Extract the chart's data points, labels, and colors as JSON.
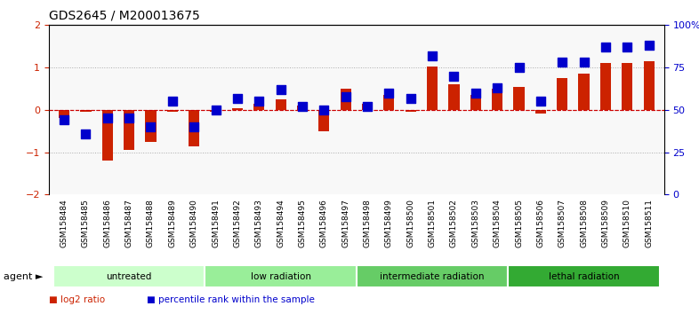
{
  "title": "GDS2645 / M200013675",
  "samples": [
    "GSM158484",
    "GSM158485",
    "GSM158486",
    "GSM158487",
    "GSM158488",
    "GSM158489",
    "GSM158490",
    "GSM158491",
    "GSM158492",
    "GSM158493",
    "GSM158494",
    "GSM158495",
    "GSM158496",
    "GSM158497",
    "GSM158498",
    "GSM158499",
    "GSM158500",
    "GSM158501",
    "GSM158502",
    "GSM158503",
    "GSM158504",
    "GSM158505",
    "GSM158506",
    "GSM158507",
    "GSM158508",
    "GSM158509",
    "GSM158510",
    "GSM158511"
  ],
  "log2_ratio": [
    -0.18,
    -0.05,
    -1.2,
    -0.95,
    -0.75,
    -0.05,
    -0.85,
    -0.05,
    0.05,
    0.15,
    0.25,
    0.1,
    -0.5,
    0.5,
    0.15,
    0.35,
    -0.05,
    1.02,
    0.6,
    0.35,
    0.5,
    0.55,
    -0.08,
    0.75,
    0.85,
    1.1,
    1.1,
    1.15
  ],
  "pct_rank": [
    44,
    36,
    45,
    45,
    40,
    55,
    40,
    50,
    57,
    55,
    62,
    52,
    50,
    58,
    52,
    60,
    57,
    82,
    70,
    60,
    63,
    75,
    55,
    78,
    78,
    87,
    87,
    88
  ],
  "groups": [
    {
      "label": "untreated",
      "start": 0,
      "end": 7,
      "color": "#ccffcc"
    },
    {
      "label": "low radiation",
      "start": 7,
      "end": 14,
      "color": "#99ee99"
    },
    {
      "label": "intermediate radiation",
      "start": 14,
      "end": 21,
      "color": "#66cc66"
    },
    {
      "label": "lethal radiation",
      "start": 21,
      "end": 28,
      "color": "#33aa33"
    }
  ],
  "bar_color": "#cc2200",
  "dot_color": "#0000cc",
  "ref_line_color": "#cc0000",
  "dot_line_color": "#0055cc",
  "grid_color": "#aaaaaa",
  "bg_color": "#ffffff",
  "plot_bg": "#f8f8f8",
  "ylim": [
    -2,
    2
  ],
  "y2lim": [
    0,
    100
  ],
  "y2ticks": [
    0,
    25,
    50,
    75,
    100
  ],
  "yticks": [
    -2,
    -1,
    0,
    1,
    2
  ],
  "bar_width": 0.5,
  "dot_size": 60
}
